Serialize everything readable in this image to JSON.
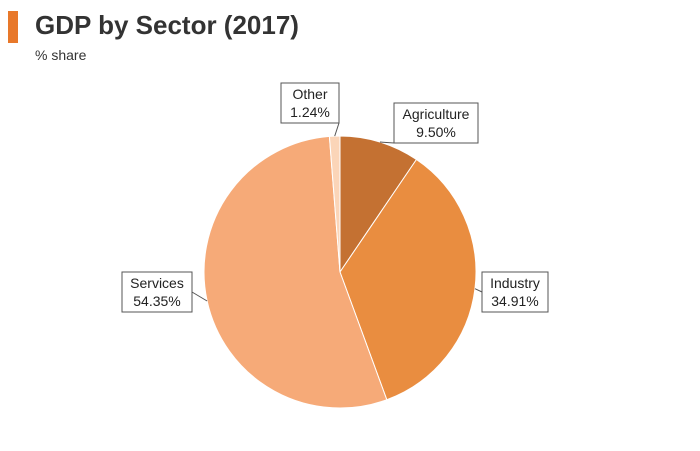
{
  "header": {
    "title": "GDP by Sector (2017)",
    "subtitle": "% share",
    "accent_color": "#e8782a"
  },
  "chart_data": {
    "type": "pie",
    "title": "GDP by Sector (2017)",
    "subtitle": "% share",
    "slices": [
      {
        "label": "Agriculture",
        "value": 9.5,
        "value_label": "9.50%",
        "color": "#c47132"
      },
      {
        "label": "Industry",
        "value": 34.91,
        "value_label": "34.91%",
        "color": "#e98d40"
      },
      {
        "label": "Services",
        "value": 54.35,
        "value_label": "54.35%",
        "color": "#f6aa78"
      },
      {
        "label": "Other",
        "value": 1.24,
        "value_label": "1.24%",
        "color": "#fbd5b8"
      }
    ],
    "start_angle_deg": 0,
    "direction": "clockwise",
    "legend": "none"
  }
}
